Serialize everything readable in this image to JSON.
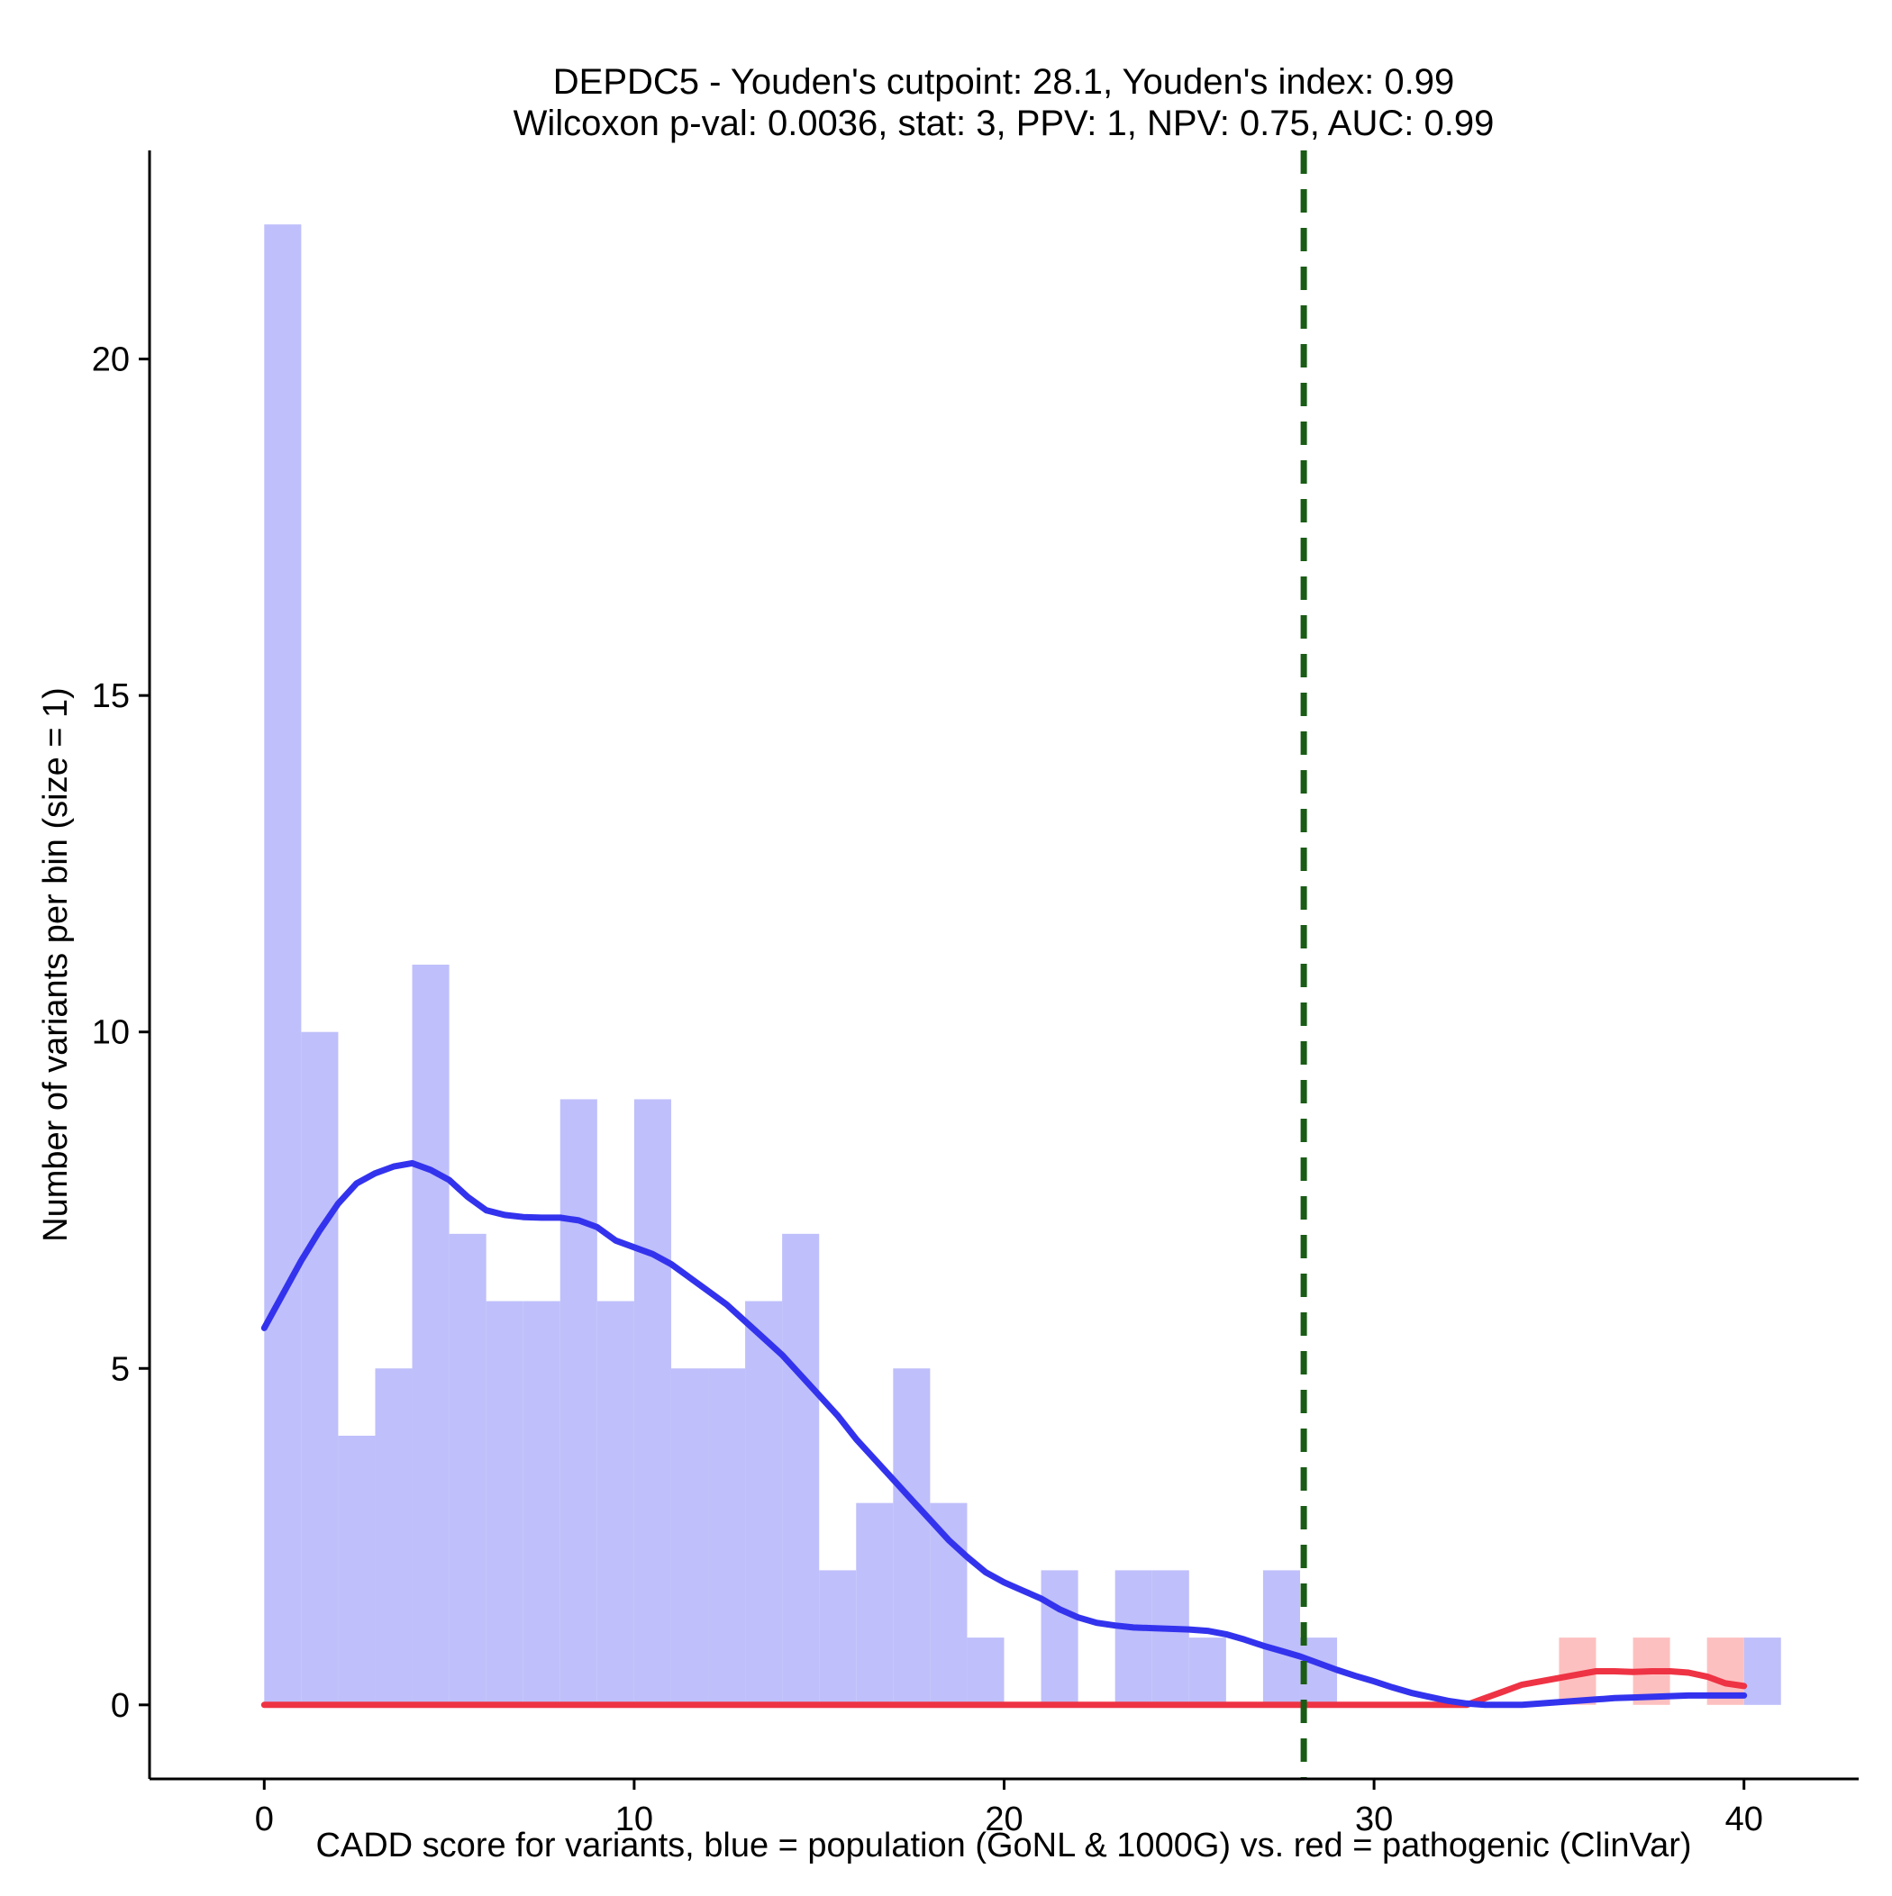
{
  "chart_data": {
    "type": "bar",
    "title": "DEPDC5 - Youden's cutpoint: 28.1, Youden's index: 0.99",
    "subtitle": "Wilcoxon p-val: 0.0036, stat: 3, PPV: 1, NPV: 0.75, AUC: 0.99",
    "xlabel": "CADD score for variants, blue = population (GoNL & 1000G) vs. red = pathogenic (ClinVar)",
    "ylabel": "Number of variants per bin (size = 1)",
    "xlim": [
      -3.1,
      43.1
    ],
    "ylim": [
      -1.1,
      23.1
    ],
    "xticks": [
      0,
      10,
      20,
      30,
      40
    ],
    "yticks": [
      0,
      5,
      10,
      15,
      20
    ],
    "xtick_labels": [
      "0",
      "10",
      "20",
      "30",
      "40"
    ],
    "ytick_labels": [
      "0",
      "5",
      "10",
      "15",
      "20"
    ],
    "bin_width": 1,
    "cutpoint": 28.1,
    "grid": false,
    "series": [
      {
        "name": "population (GoNL & 1000G)",
        "color": "#bfbffb",
        "bin_starts": [
          0,
          1,
          2,
          3,
          4,
          5,
          6,
          7,
          8,
          9,
          10,
          11,
          12,
          13,
          14,
          15,
          16,
          17,
          18,
          19,
          20,
          21,
          22,
          23,
          24,
          25,
          26,
          27,
          28,
          29,
          30,
          31,
          32,
          33,
          34,
          35,
          36,
          37,
          38,
          39,
          40
        ],
        "values": [
          22,
          10,
          4,
          5,
          11,
          7,
          6,
          6,
          9,
          6,
          9,
          5,
          5,
          6,
          7,
          2,
          3,
          5,
          3,
          1,
          0,
          2,
          0,
          2,
          2,
          1,
          0,
          2,
          1,
          0,
          0,
          0,
          0,
          0,
          0,
          0,
          0,
          0,
          0,
          0,
          1
        ]
      },
      {
        "name": "pathogenic (ClinVar)",
        "color": "#fdc0c0",
        "bin_starts": [
          35,
          37,
          39
        ],
        "values": [
          1,
          1,
          1
        ]
      }
    ],
    "density": [
      {
        "name": "population density",
        "color": "#3333ee",
        "x": [
          0,
          0.5,
          1,
          1.5,
          2,
          2.5,
          3,
          3.5,
          4,
          4.5,
          5,
          5.5,
          6,
          6.5,
          7,
          7.5,
          8,
          8.5,
          9,
          9.5,
          10,
          10.5,
          11,
          11.5,
          12,
          12.5,
          13,
          13.5,
          14,
          14.5,
          15,
          15.5,
          16,
          16.5,
          17,
          17.5,
          18,
          18.5,
          19,
          19.5,
          20,
          20.5,
          21,
          21.5,
          22,
          22.5,
          23,
          23.5,
          24,
          24.5,
          25,
          25.5,
          26,
          26.5,
          27,
          27.5,
          28,
          28.5,
          29,
          29.5,
          30,
          30.5,
          31,
          31.5,
          32,
          32.5,
          33,
          33.5,
          34,
          34.5,
          35,
          35.5,
          36,
          36.5,
          37,
          37.5,
          38,
          38.5,
          39,
          39.5,
          40
        ],
        "y": [
          5.6,
          6.1,
          6.6,
          7.05,
          7.45,
          7.75,
          7.9,
          8.0,
          8.05,
          7.95,
          7.8,
          7.55,
          7.35,
          7.28,
          7.25,
          7.24,
          7.24,
          7.2,
          7.1,
          6.9,
          6.8,
          6.7,
          6.55,
          6.35,
          6.15,
          5.95,
          5.7,
          5.45,
          5.2,
          4.9,
          4.6,
          4.3,
          3.95,
          3.65,
          3.35,
          3.05,
          2.75,
          2.45,
          2.2,
          1.97,
          1.82,
          1.7,
          1.58,
          1.42,
          1.3,
          1.22,
          1.18,
          1.15,
          1.14,
          1.13,
          1.12,
          1.1,
          1.05,
          0.97,
          0.88,
          0.8,
          0.72,
          0.62,
          0.52,
          0.43,
          0.35,
          0.26,
          0.18,
          0.12,
          0.06,
          0.02,
          0.0,
          0.0,
          0.0,
          0.02,
          0.04,
          0.06,
          0.08,
          0.1,
          0.11,
          0.12,
          0.13,
          0.14,
          0.14,
          0.14,
          0.14
        ]
      },
      {
        "name": "pathogenic density",
        "color": "#ee3344",
        "x": [
          0,
          5,
          10,
          15,
          20,
          25,
          30,
          32,
          32.5,
          33,
          33.5,
          34,
          34.5,
          35,
          35.5,
          36,
          36.5,
          37,
          37.5,
          38,
          38.5,
          39,
          39.5,
          40
        ],
        "y": [
          0,
          0,
          0,
          0,
          0,
          0,
          0,
          0,
          0.0,
          0.1,
          0.2,
          0.3,
          0.35,
          0.4,
          0.45,
          0.5,
          0.5,
          0.49,
          0.5,
          0.5,
          0.48,
          0.42,
          0.32,
          0.28
        ]
      }
    ]
  }
}
